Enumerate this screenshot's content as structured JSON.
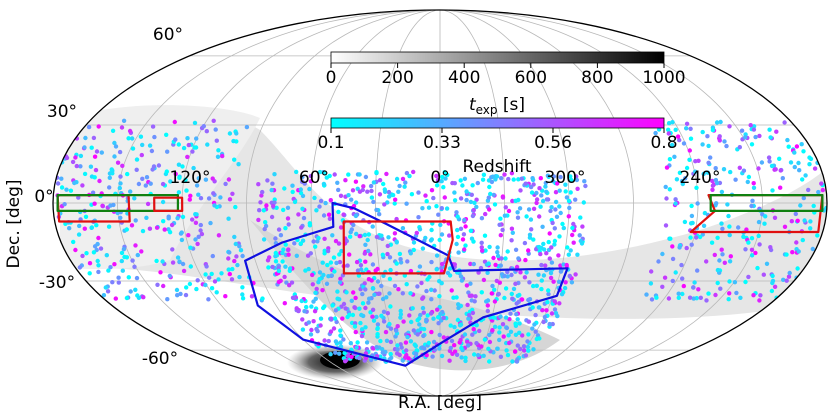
{
  "chart_data": {
    "type": "scatter",
    "projection": "mollweide",
    "xlabel": "R.A. [deg]",
    "ylabel": "Dec. [deg]",
    "ra_ticks": [
      {
        "ra": 120,
        "label": "120°"
      },
      {
        "ra": 60,
        "label": "60°"
      },
      {
        "ra": 0,
        "label": "0°"
      },
      {
        "ra": 300,
        "label": "300°"
      },
      {
        "ra": 240,
        "label": "240°"
      }
    ],
    "dec_ticks": [
      {
        "dec": 60,
        "label": "60°"
      },
      {
        "dec": 30,
        "label": "30°"
      },
      {
        "dec": 0,
        "label": "0°"
      },
      {
        "dec": -30,
        "label": "-30°"
      },
      {
        "dec": -60,
        "label": "-60°"
      }
    ],
    "grid": true,
    "colorbars": [
      {
        "name": "exposure_time",
        "label_base": "t",
        "label_sub": "exp",
        "label_unit": " [s]",
        "range": [
          0,
          1000
        ],
        "ticks": [
          "0",
          "200",
          "400",
          "600",
          "800",
          "1000"
        ],
        "colors": [
          "#ffffff",
          "#000000"
        ]
      },
      {
        "name": "redshift",
        "label": "Redshift",
        "range": [
          0.1,
          0.8
        ],
        "ticks": [
          "0.1",
          "0.33",
          "0.56",
          "0.8"
        ],
        "colors": [
          "#00ffff",
          "#ff00ff"
        ]
      }
    ],
    "point_clouds": [
      {
        "name": "north-left-region",
        "ra_range": [
          95,
          180
        ],
        "dec_range": [
          -38,
          32
        ],
        "count": 360
      },
      {
        "name": "north-right-region",
        "ra_range": [
          180,
          255
        ],
        "dec_range": [
          -38,
          32
        ],
        "count": 300
      },
      {
        "name": "southern-footprint",
        "ra_range": [
          -68,
          85
        ],
        "dec_range": [
          -66,
          12
        ],
        "count": 1200
      }
    ],
    "outlines": [
      {
        "name": "blue-southern-footprint",
        "color": "#1010e0",
        "points": [
          [
            50,
            0
          ],
          [
            50,
            -9
          ],
          [
            75,
            -15
          ],
          [
            95,
            -22
          ],
          [
            100,
            -40
          ],
          [
            90,
            -55
          ],
          [
            30,
            -68
          ],
          [
            -2,
            -56
          ],
          [
            -25,
            -45
          ],
          [
            -62,
            -36
          ],
          [
            -63,
            -25
          ],
          [
            -7,
            -26
          ],
          [
            -4,
            -20
          ],
          [
            25,
            -8
          ],
          [
            40,
            -2
          ]
        ]
      },
      {
        "name": "red-southern-strip",
        "color": "#e01010",
        "points": [
          [
            45,
            -7
          ],
          [
            -5,
            -7
          ],
          [
            -6,
            -14
          ],
          [
            -2,
            -27
          ],
          [
            48,
            -27
          ]
        ]
      },
      {
        "name": "red-strip-left",
        "color": "#e01010",
        "points": [
          [
            178,
            3
          ],
          [
            145,
            3
          ],
          [
            145,
            -7
          ],
          [
            178,
            -7
          ]
        ]
      },
      {
        "name": "green-strip-left",
        "color": "#108010",
        "points": [
          [
            178,
            3
          ],
          [
            122,
            3
          ],
          [
            122,
            -3
          ],
          [
            178,
            -3
          ]
        ]
      },
      {
        "name": "red-box-left",
        "color": "#e01010",
        "points": [
          [
            133,
            2
          ],
          [
            120,
            2
          ],
          [
            120,
            -3
          ],
          [
            133,
            -3
          ]
        ]
      },
      {
        "name": "red-strip-right",
        "color": "#e01010",
        "points": [
          [
            182,
            3
          ],
          [
            235,
            3
          ],
          [
            232,
            -3
          ],
          [
            242,
            -11
          ],
          [
            182,
            -11
          ]
        ]
      },
      {
        "name": "green-strip-right",
        "color": "#108010",
        "points": [
          [
            182,
            3
          ],
          [
            234,
            3
          ],
          [
            234,
            -3
          ],
          [
            182,
            -3
          ]
        ]
      }
    ]
  }
}
